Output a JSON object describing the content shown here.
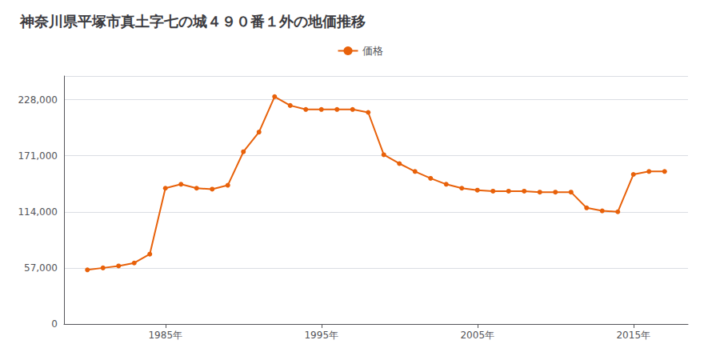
{
  "chart_data": {
    "type": "line",
    "title": "神奈川県平塚市真土字七の城４９０番１外の地価推移",
    "x": [
      1980,
      1981,
      1982,
      1983,
      1984,
      1985,
      1986,
      1987,
      1988,
      1989,
      1990,
      1991,
      1992,
      1993,
      1994,
      1995,
      1996,
      1997,
      1998,
      1999,
      2000,
      2001,
      2002,
      2003,
      2004,
      2005,
      2006,
      2007,
      2008,
      2009,
      2010,
      2011,
      2012,
      2013,
      2014,
      2015,
      2016,
      2017
    ],
    "series": [
      {
        "name": "価格",
        "color": "#E8610A",
        "marker": "circle",
        "values": [
          55000,
          57000,
          59000,
          62000,
          71000,
          138000,
          142000,
          138000,
          137000,
          141000,
          175000,
          195000,
          231000,
          222000,
          218000,
          218000,
          218000,
          218000,
          215000,
          172000,
          163000,
          155000,
          148000,
          142000,
          138000,
          136000,
          135000,
          135000,
          135000,
          134000,
          134000,
          134000,
          118000,
          115000,
          114000,
          152000,
          155000,
          155000
        ]
      }
    ],
    "xlim": [
      1978.5,
      2018.5
    ],
    "xticks": [
      {
        "value": 1985,
        "label": "1985年"
      },
      {
        "value": 1995,
        "label": "1995年"
      },
      {
        "value": 2005,
        "label": "2005年"
      },
      {
        "value": 2015,
        "label": "2015年"
      }
    ],
    "ylim": [
      0,
      252000
    ],
    "yticks": [
      0,
      {
        "value": 57000,
        "label": "57,000"
      },
      {
        "value": 114000,
        "label": "114,000"
      },
      {
        "value": 171000,
        "label": "171,000"
      },
      {
        "value": 228000,
        "label": "228,000"
      }
    ],
    "grid": true,
    "legend": "top"
  }
}
